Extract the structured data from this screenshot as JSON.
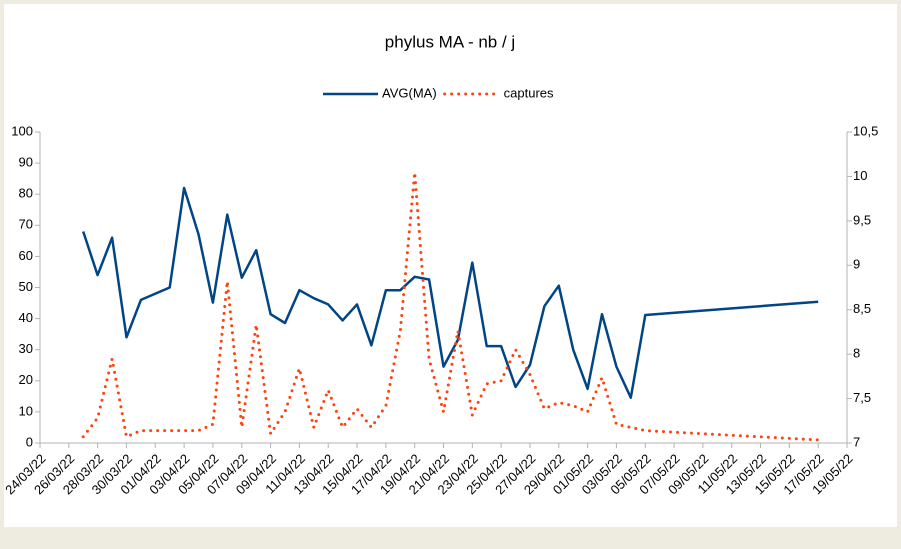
{
  "chart_data": {
    "type": "line",
    "title": "phylus MA - nb / j",
    "x": [
      "27/03/22",
      "28/03/22",
      "29/03/22",
      "30/03/22",
      "31/03/22",
      "02/04/22",
      "03/04/22",
      "04/04/22",
      "05/04/22",
      "06/04/22",
      "07/04/22",
      "08/04/22",
      "09/04/22",
      "10/04/22",
      "11/04/22",
      "12/04/22",
      "13/04/22",
      "14/04/22",
      "15/04/22",
      "16/04/22",
      "17/04/22",
      "18/04/22",
      "19/04/22",
      "20/04/22",
      "21/04/22",
      "22/04/22",
      "23/04/22",
      "24/04/22",
      "25/04/22",
      "26/04/22",
      "27/04/22",
      "28/04/22",
      "29/04/22",
      "30/04/22",
      "01/05/22",
      "02/05/22",
      "03/05/22",
      "04/05/22",
      "05/05/22",
      "17/05/22"
    ],
    "xlim": [
      "24/03/22",
      "19/05/22"
    ],
    "xticks": [
      "24/03/22",
      "26/03/22",
      "28/03/22",
      "30/03/22",
      "01/04/22",
      "03/04/22",
      "05/04/22",
      "07/04/22",
      "09/04/22",
      "11/04/22",
      "13/04/22",
      "15/04/22",
      "17/04/22",
      "19/04/22",
      "21/04/22",
      "23/04/22",
      "25/04/22",
      "27/04/22",
      "29/04/22",
      "01/05/22",
      "03/05/22",
      "05/05/22",
      "07/05/22",
      "09/05/22",
      "11/05/22",
      "13/05/22",
      "15/05/22",
      "17/05/22",
      "19/05/22"
    ],
    "series": [
      {
        "name": "AVG(MA)",
        "color": "#004586",
        "axis": "y2",
        "style": "solid",
        "values": [
          9.38,
          8.89,
          9.31,
          8.19,
          8.61,
          8.75,
          9.87,
          9.35,
          8.58,
          9.57,
          8.86,
          9.17,
          8.45,
          8.35,
          8.72,
          8.63,
          8.56,
          8.38,
          8.56,
          8.1,
          8.72,
          8.72,
          8.87,
          8.84,
          7.86,
          8.16,
          9.03,
          8.09,
          8.09,
          7.63,
          7.88,
          8.54,
          8.77,
          8.05,
          7.61,
          8.45,
          7.86,
          7.51,
          8.44,
          8.59
        ]
      },
      {
        "name": "captures",
        "color": "#ff420e",
        "style": "dotted",
        "values": [
          2,
          8,
          27,
          2,
          4,
          4,
          4,
          4,
          6,
          52,
          5,
          38,
          3,
          10,
          24,
          5,
          17,
          5,
          11,
          5,
          12,
          36,
          87,
          27,
          10,
          36,
          9,
          19,
          20,
          30,
          22,
          11,
          13,
          12,
          10,
          21,
          6,
          5,
          4,
          1
        ]
      }
    ],
    "ylim": [
      0,
      100
    ],
    "yticks": [
      0,
      10,
      20,
      30,
      40,
      50,
      60,
      70,
      80,
      90,
      100
    ],
    "y2lim": [
      7,
      10.5
    ],
    "y2ticks": [
      7,
      {
        "value": 7.5,
        "label": "7,5"
      },
      8,
      {
        "value": 8.5,
        "label": "8,5"
      },
      9,
      {
        "value": 9.5,
        "label": "9,5"
      },
      10,
      {
        "value": 10.5,
        "label": "10,5"
      }
    ],
    "legend": "top"
  }
}
